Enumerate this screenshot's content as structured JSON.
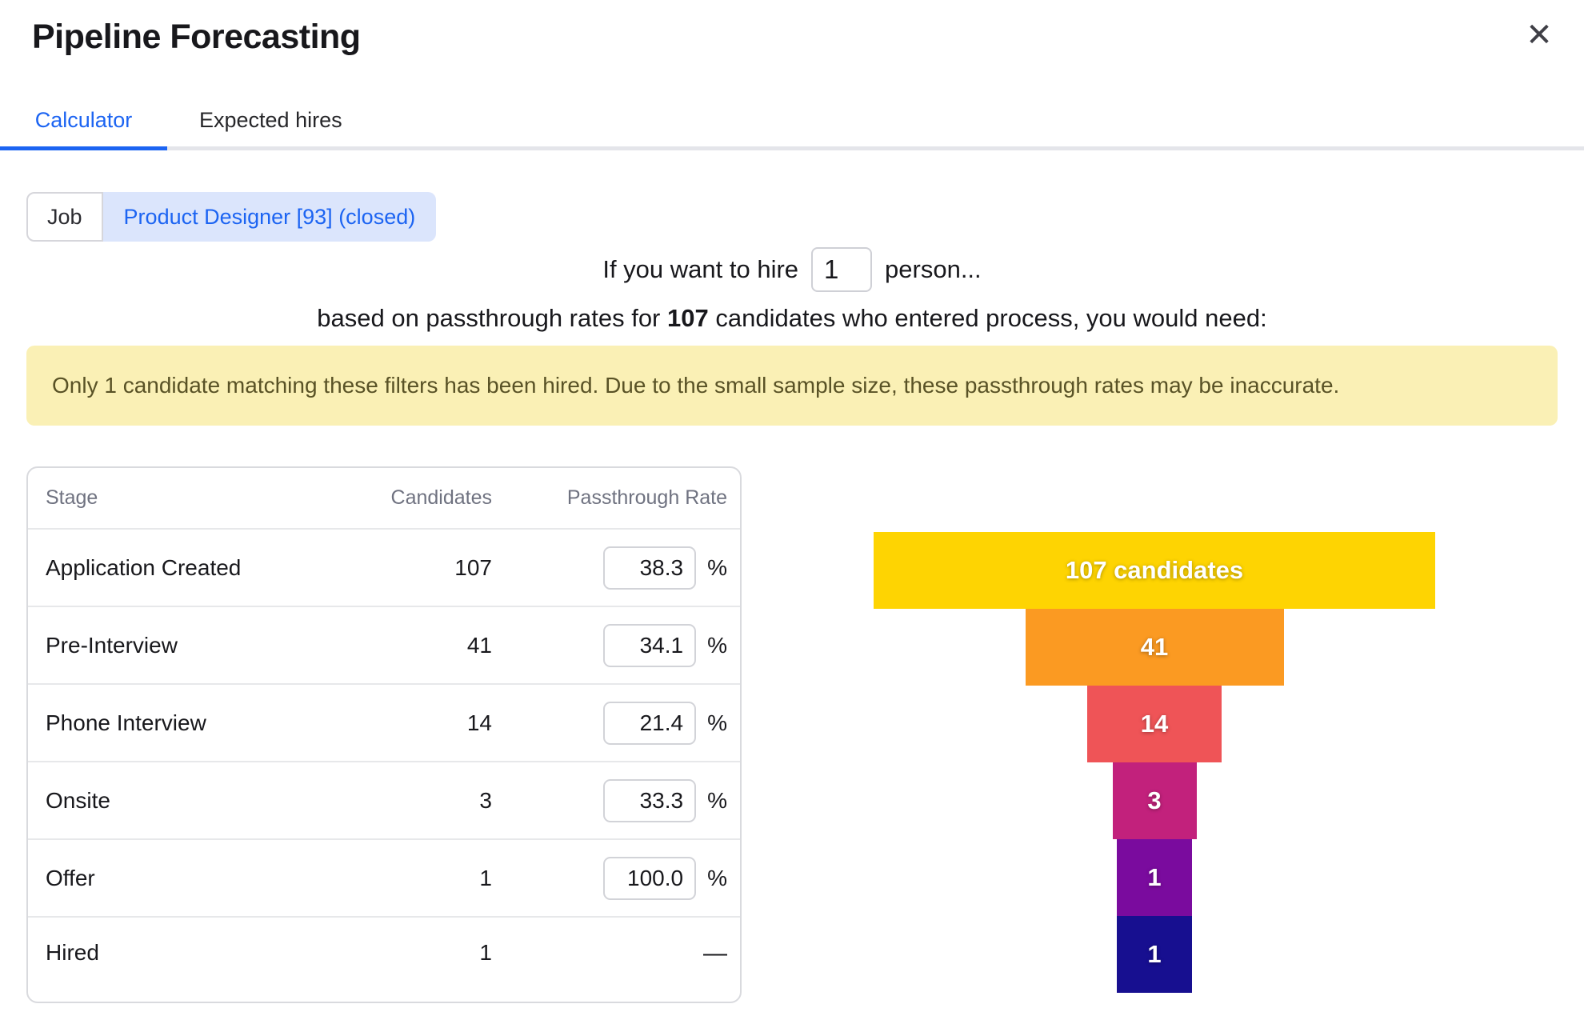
{
  "header": {
    "title": "Pipeline Forecasting",
    "close_icon": "✕"
  },
  "tabs": {
    "calculator": {
      "label": "Calculator",
      "active": true
    },
    "expected_hires": {
      "label": "Expected hires",
      "active": false
    }
  },
  "job_filter": {
    "label": "Job",
    "value": "Product Designer [93] (closed)"
  },
  "hire_sentence": {
    "prefix": "If you want to hire",
    "count": "1",
    "suffix": "person..."
  },
  "basis_sentence": {
    "before": "based on passthrough rates for",
    "count": "107",
    "after": "candidates who entered process, you would need:"
  },
  "warning": "Only 1 candidate matching these filters has been hired. Due to the small sample size, these passthrough rates may be inaccurate.",
  "table": {
    "columns": {
      "stage": "Stage",
      "candidates": "Candidates",
      "rate": "Passthrough Rate"
    },
    "rows": [
      {
        "stage": "Application Created",
        "candidates": "107",
        "rate": "38.3",
        "unit": "%"
      },
      {
        "stage": "Pre-Interview",
        "candidates": "41",
        "rate": "34.1",
        "unit": "%"
      },
      {
        "stage": "Phone Interview",
        "candidates": "14",
        "rate": "21.4",
        "unit": "%"
      },
      {
        "stage": "Onsite",
        "candidates": "3",
        "rate": "33.3",
        "unit": "%"
      },
      {
        "stage": "Offer",
        "candidates": "1",
        "rate": "100.0",
        "unit": "%"
      },
      {
        "stage": "Hired",
        "candidates": "1",
        "rate": null,
        "unit": "—"
      }
    ]
  },
  "chart_data": {
    "type": "bar",
    "subtype": "funnel",
    "categories": [
      "Application Created",
      "Pre-Interview",
      "Phone Interview",
      "Onsite",
      "Offer",
      "Hired"
    ],
    "values": [
      107,
      41,
      14,
      3,
      1,
      1
    ],
    "labels": [
      "107 candidates",
      "41",
      "14",
      "3",
      "1",
      "1"
    ],
    "colors": [
      "#fed402",
      "#fb9a22",
      "#ef5457",
      "#c2217c",
      "#7a0b9e",
      "#170f90"
    ],
    "title": "",
    "xlabel": "",
    "ylabel": "",
    "legend": false,
    "grid": false
  },
  "colors": {
    "accent_blue": "#1c64f2",
    "pill_bg": "#dbe5fc",
    "warning_bg": "#faf0b5",
    "warning_text": "#595226"
  }
}
